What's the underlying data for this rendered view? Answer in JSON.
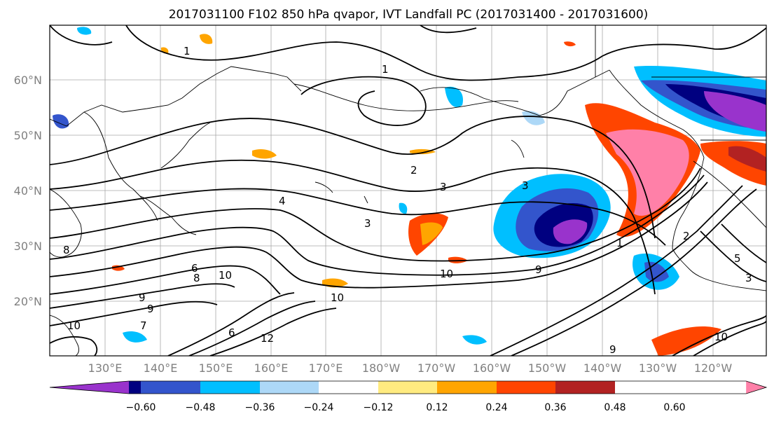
{
  "title": "2017031100 F102 850 hPa qvapor, IVT Landfall PC (2017031400 - 2017031600)",
  "latitude_labels": [
    "60°N",
    "50°N",
    "40°N",
    "30°N",
    "20°N"
  ],
  "longitude_labels": [
    "130°E",
    "140°E",
    "150°E",
    "160°E",
    "170°E",
    "180°W",
    "170°W",
    "160°W",
    "150°W",
    "140°W",
    "130°W",
    "120°W"
  ],
  "colorbar": {
    "colors": [
      "#9933cc",
      "#000080",
      "#3355cc",
      "#00bfff",
      "#add8f7",
      "#ffffff",
      "#ffeb80",
      "#ffa500",
      "#ff4500",
      "#b22222",
      "#ff80a8"
    ],
    "tick_labels": [
      "−0.60",
      "−0.48",
      "−0.36",
      "−0.24",
      "−0.12",
      "0.12",
      "0.24",
      "0.36",
      "0.48",
      "0.60"
    ]
  },
  "contour_labels": [
    "1",
    "1",
    "2",
    "3",
    "4",
    "6",
    "8",
    "9",
    "10",
    "10",
    "10",
    "9",
    "3",
    "2",
    "1",
    "12",
    "10",
    "9",
    "3",
    "5",
    "3",
    "10",
    "7",
    "9",
    "8",
    "6"
  ]
}
